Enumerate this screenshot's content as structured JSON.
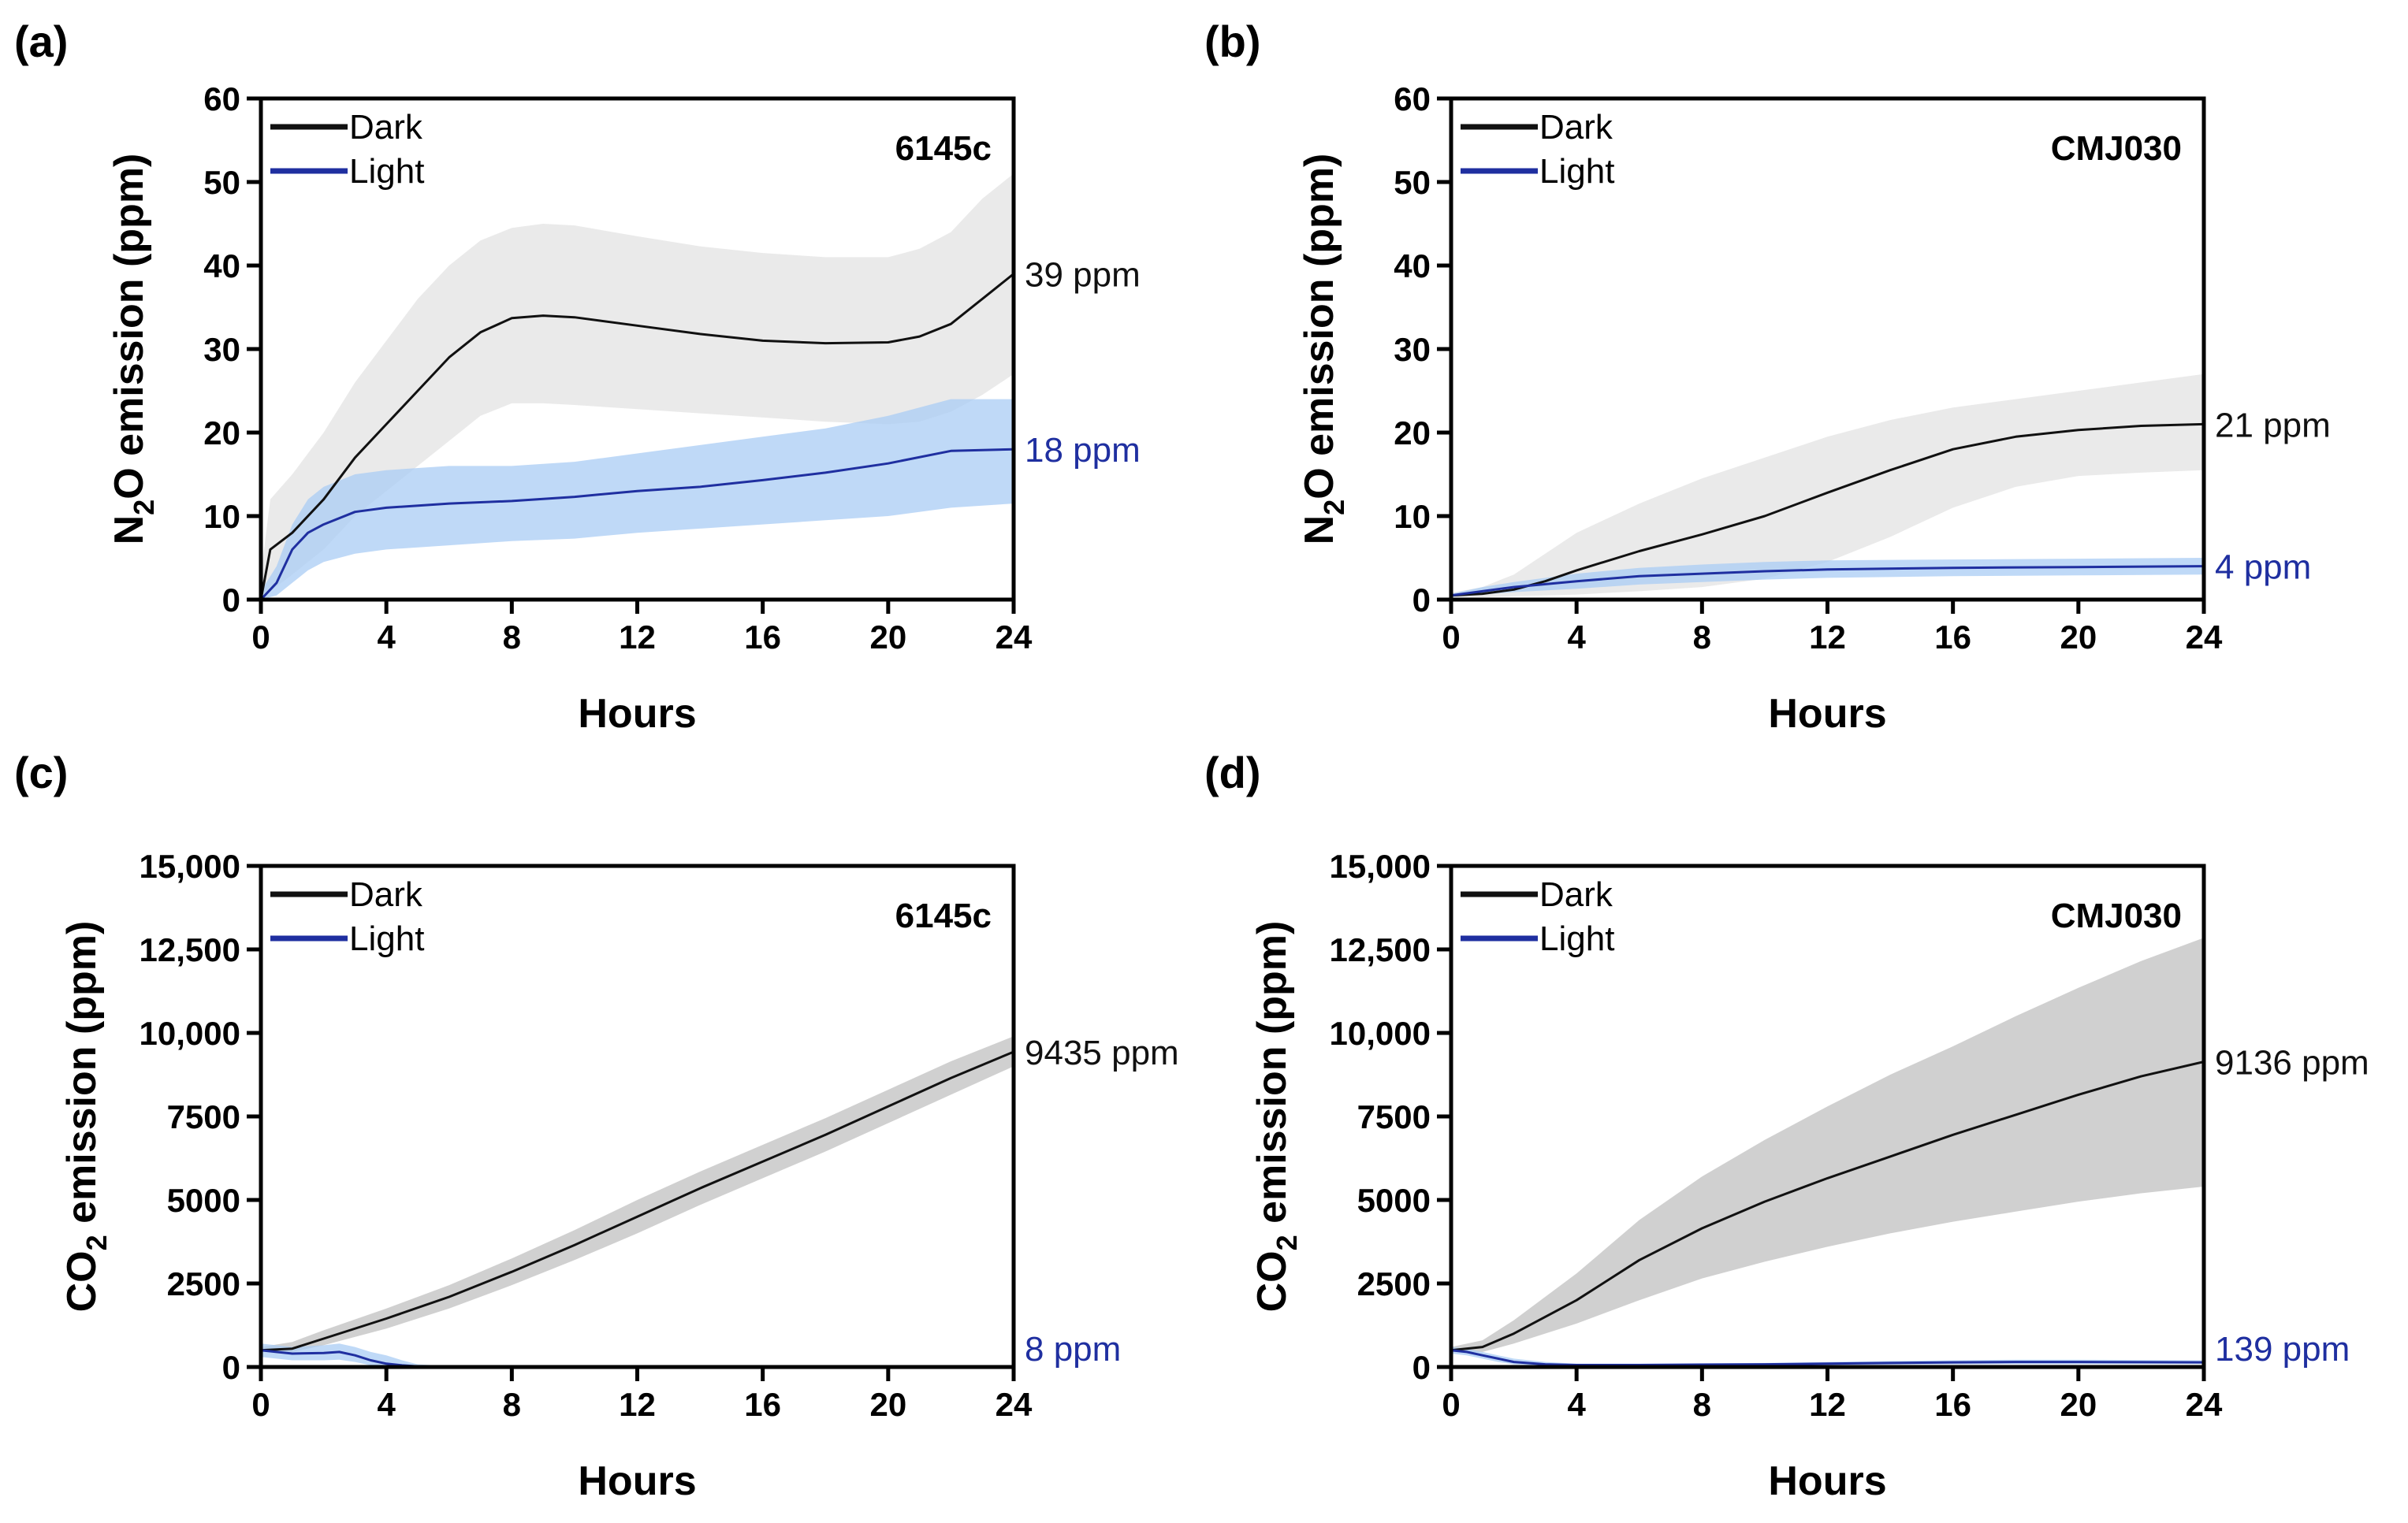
{
  "colors": {
    "dark_line": "#111111",
    "light_line": "#1f2fa0",
    "dark_band_n2o": "#e6e6e6",
    "dark_band_co2": "#c8c8c8",
    "light_band": "#a9ccf4",
    "light_label": "#1f2fa0",
    "dark_label": "#111111"
  },
  "chart_data": [
    {
      "panel": "(a)",
      "type": "line",
      "strain": "6145c",
      "ylabel_prefix": "N",
      "ylabel_sub": "2",
      "ylabel_suffix": "O emission (ppm)",
      "xlabel": "Hours",
      "ylim": [
        0,
        60
      ],
      "yticks": [
        0,
        10,
        20,
        30,
        40,
        50,
        60
      ],
      "ytick_labels": [
        "0",
        "10",
        "20",
        "30",
        "40",
        "50",
        "60"
      ],
      "xlim": [
        0,
        24
      ],
      "xticks": [
        0,
        4,
        8,
        12,
        16,
        20,
        24
      ],
      "xtick_labels": [
        "0",
        "4",
        "8",
        "12",
        "16",
        "20",
        "24"
      ],
      "legend": [
        "Dark",
        "Light"
      ],
      "series": [
        {
          "name": "Dark",
          "x": [
            0,
            0.3,
            1,
            2,
            3,
            4,
            5,
            6,
            7,
            8,
            9,
            10,
            12,
            14,
            16,
            18,
            20,
            21,
            22,
            23,
            24
          ],
          "y": [
            0,
            6,
            8,
            12,
            17,
            21,
            25,
            29,
            32,
            33.7,
            34,
            33.8,
            32.8,
            31.8,
            31,
            30.7,
            30.8,
            31.5,
            33,
            36,
            39
          ],
          "lower": [
            0,
            1,
            3,
            6,
            10,
            13,
            16,
            19,
            22,
            23.5,
            23.5,
            23.3,
            22.8,
            22.3,
            21.8,
            21.3,
            21,
            21.3,
            22.5,
            24.5,
            27
          ],
          "upper": [
            3,
            12,
            15,
            20,
            26,
            31,
            36,
            40,
            43,
            44.5,
            45,
            44.8,
            43.5,
            42.3,
            41.5,
            41,
            41,
            42,
            44,
            48,
            51
          ]
        },
        {
          "name": "Light",
          "x": [
            0,
            0.5,
            1,
            1.5,
            2,
            3,
            4,
            6,
            8,
            10,
            12,
            14,
            16,
            18,
            20,
            22,
            24
          ],
          "y": [
            0,
            2,
            6,
            8,
            9,
            10.5,
            11,
            11.5,
            11.8,
            12.3,
            13,
            13.5,
            14.3,
            15.2,
            16.3,
            17.8,
            18
          ],
          "lower": [
            0,
            0.5,
            2,
            3.5,
            4.5,
            5.5,
            6,
            6.5,
            7,
            7.3,
            8,
            8.5,
            9,
            9.5,
            10,
            11,
            11.5
          ],
          "upper": [
            1,
            4,
            9,
            12,
            13.5,
            15,
            15.5,
            16,
            16,
            16.5,
            17.5,
            18.5,
            19.5,
            20.5,
            22,
            24,
            24
          ]
        }
      ],
      "end_labels": [
        "39 ppm",
        "18 ppm"
      ]
    },
    {
      "panel": "(b)",
      "type": "line",
      "strain": "CMJ030",
      "ylabel_prefix": "N",
      "ylabel_sub": "2",
      "ylabel_suffix": "O emission (ppm)",
      "xlabel": "Hours",
      "ylim": [
        0,
        60
      ],
      "yticks": [
        0,
        10,
        20,
        30,
        40,
        50,
        60
      ],
      "ytick_labels": [
        "0",
        "10",
        "20",
        "30",
        "40",
        "50",
        "60"
      ],
      "xlim": [
        0,
        24
      ],
      "xticks": [
        0,
        4,
        8,
        12,
        16,
        20,
        24
      ],
      "xtick_labels": [
        "0",
        "4",
        "8",
        "12",
        "16",
        "20",
        "24"
      ],
      "legend": [
        "Dark",
        "Light"
      ],
      "series": [
        {
          "name": "Dark",
          "x": [
            0,
            1,
            2,
            3,
            4,
            6,
            8,
            10,
            12,
            14,
            16,
            18,
            20,
            22,
            24
          ],
          "y": [
            0.5,
            0.7,
            1.2,
            2.2,
            3.5,
            5.8,
            7.8,
            10,
            12.8,
            15.5,
            18,
            19.5,
            20.3,
            20.8,
            21
          ],
          "lower": [
            0.3,
            0.3,
            0.4,
            0.5,
            0.6,
            1,
            1.5,
            2.5,
            4.5,
            7.5,
            11,
            13.5,
            14.8,
            15.2,
            15.5
          ],
          "upper": [
            0.8,
            1.5,
            3,
            5.5,
            8,
            11.5,
            14.5,
            17,
            19.5,
            21.5,
            23,
            24,
            25,
            26,
            27
          ]
        },
        {
          "name": "Light",
          "x": [
            0,
            1,
            2,
            4,
            6,
            8,
            10,
            12,
            16,
            20,
            24
          ],
          "y": [
            0.5,
            1,
            1.5,
            2.2,
            2.8,
            3.1,
            3.4,
            3.6,
            3.8,
            3.9,
            4
          ],
          "lower": [
            0.3,
            0.6,
            0.9,
            1.3,
            1.8,
            2.1,
            2.4,
            2.6,
            2.8,
            2.9,
            3
          ],
          "upper": [
            0.7,
            1.5,
            2.1,
            3.1,
            3.8,
            4.2,
            4.5,
            4.7,
            4.8,
            4.9,
            5
          ]
        }
      ],
      "end_labels": [
        "21 ppm",
        "4 ppm"
      ]
    },
    {
      "panel": "(c)",
      "type": "line",
      "strain": "6145c",
      "ylabel_prefix": "CO",
      "ylabel_sub": "2",
      "ylabel_suffix": " emission (ppm)",
      "xlabel": "Hours",
      "ylim": [
        0,
        15000
      ],
      "yticks": [
        0,
        2500,
        5000,
        7500,
        10000,
        12500,
        15000
      ],
      "ytick_labels": [
        "0",
        "2500",
        "5000",
        "7500",
        "10,000",
        "12,500",
        "15,000"
      ],
      "xlim": [
        0,
        24
      ],
      "xticks": [
        0,
        4,
        8,
        12,
        16,
        20,
        24
      ],
      "xtick_labels": [
        "0",
        "4",
        "8",
        "12",
        "16",
        "20",
        "24"
      ],
      "legend": [
        "Dark",
        "Light"
      ],
      "series": [
        {
          "name": "Dark",
          "x": [
            0,
            1,
            2,
            4,
            6,
            8,
            10,
            12,
            14,
            16,
            18,
            20,
            22,
            24
          ],
          "y": [
            500,
            550,
            850,
            1450,
            2100,
            2850,
            3650,
            4500,
            5350,
            6150,
            6950,
            7800,
            8650,
            9435
          ],
          "lower": [
            450,
            450,
            650,
            1150,
            1750,
            2450,
            3200,
            4000,
            4850,
            5650,
            6450,
            7300,
            8150,
            9000
          ],
          "upper": [
            600,
            750,
            1100,
            1750,
            2450,
            3250,
            4100,
            5000,
            5850,
            6650,
            7450,
            8300,
            9150,
            9900
          ]
        },
        {
          "name": "Light",
          "x": [
            0,
            0.5,
            1,
            2,
            2.5,
            3,
            3.5,
            4,
            4.5,
            5,
            6,
            8,
            12,
            16,
            20,
            24
          ],
          "y": [
            500,
            450,
            400,
            420,
            450,
            350,
            200,
            100,
            50,
            20,
            10,
            8,
            8,
            8,
            8,
            8
          ],
          "lower": [
            300,
            250,
            200,
            200,
            220,
            150,
            50,
            10,
            0,
            0,
            0,
            0,
            0,
            0,
            0,
            0
          ],
          "upper": [
            700,
            650,
            600,
            650,
            700,
            600,
            450,
            350,
            200,
            80,
            30,
            20,
            20,
            20,
            20,
            20
          ]
        }
      ],
      "end_labels": [
        "9435 ppm",
        "8 ppm"
      ]
    },
    {
      "panel": "(d)",
      "type": "line",
      "strain": "CMJ030",
      "ylabel_prefix": "CO",
      "ylabel_sub": "2",
      "ylabel_suffix": " emission (ppm)",
      "xlabel": "Hours",
      "ylim": [
        0,
        15000
      ],
      "yticks": [
        0,
        2500,
        5000,
        7500,
        10000,
        12500,
        15000
      ],
      "ytick_labels": [
        "0",
        "2500",
        "5000",
        "7500",
        "10,000",
        "12,500",
        "15,000"
      ],
      "xlim": [
        0,
        24
      ],
      "xticks": [
        0,
        4,
        8,
        12,
        16,
        20,
        24
      ],
      "xtick_labels": [
        "0",
        "4",
        "8",
        "12",
        "16",
        "20",
        "24"
      ],
      "legend": [
        "Dark",
        "Light"
      ],
      "series": [
        {
          "name": "Dark",
          "x": [
            0,
            1,
            2,
            4,
            6,
            8,
            10,
            12,
            14,
            16,
            18,
            20,
            22,
            24
          ],
          "y": [
            500,
            600,
            1000,
            2000,
            3200,
            4150,
            4950,
            5650,
            6300,
            6950,
            7550,
            8150,
            8700,
            9136
          ],
          "lower": [
            450,
            450,
            700,
            1300,
            2000,
            2650,
            3150,
            3600,
            4000,
            4350,
            4650,
            4950,
            5200,
            5400
          ],
          "upper": [
            600,
            800,
            1400,
            2800,
            4400,
            5700,
            6800,
            7800,
            8750,
            9600,
            10500,
            11350,
            12150,
            12850
          ]
        },
        {
          "name": "Light",
          "x": [
            0,
            0.5,
            1,
            1.5,
            2,
            3,
            4,
            6,
            8,
            10,
            12,
            14,
            16,
            18,
            20,
            22,
            24
          ],
          "y": [
            500,
            450,
            350,
            250,
            150,
            80,
            60,
            60,
            70,
            80,
            100,
            120,
            140,
            150,
            150,
            145,
            139
          ],
          "lower": [
            400,
            350,
            250,
            150,
            80,
            40,
            30,
            30,
            40,
            50,
            60,
            70,
            80,
            90,
            90,
            90,
            90
          ],
          "upper": [
            600,
            550,
            450,
            350,
            250,
            150,
            100,
            100,
            110,
            120,
            150,
            180,
            200,
            220,
            220,
            210,
            200
          ]
        }
      ],
      "end_labels": [
        "9136 ppm",
        "139 ppm"
      ]
    }
  ]
}
